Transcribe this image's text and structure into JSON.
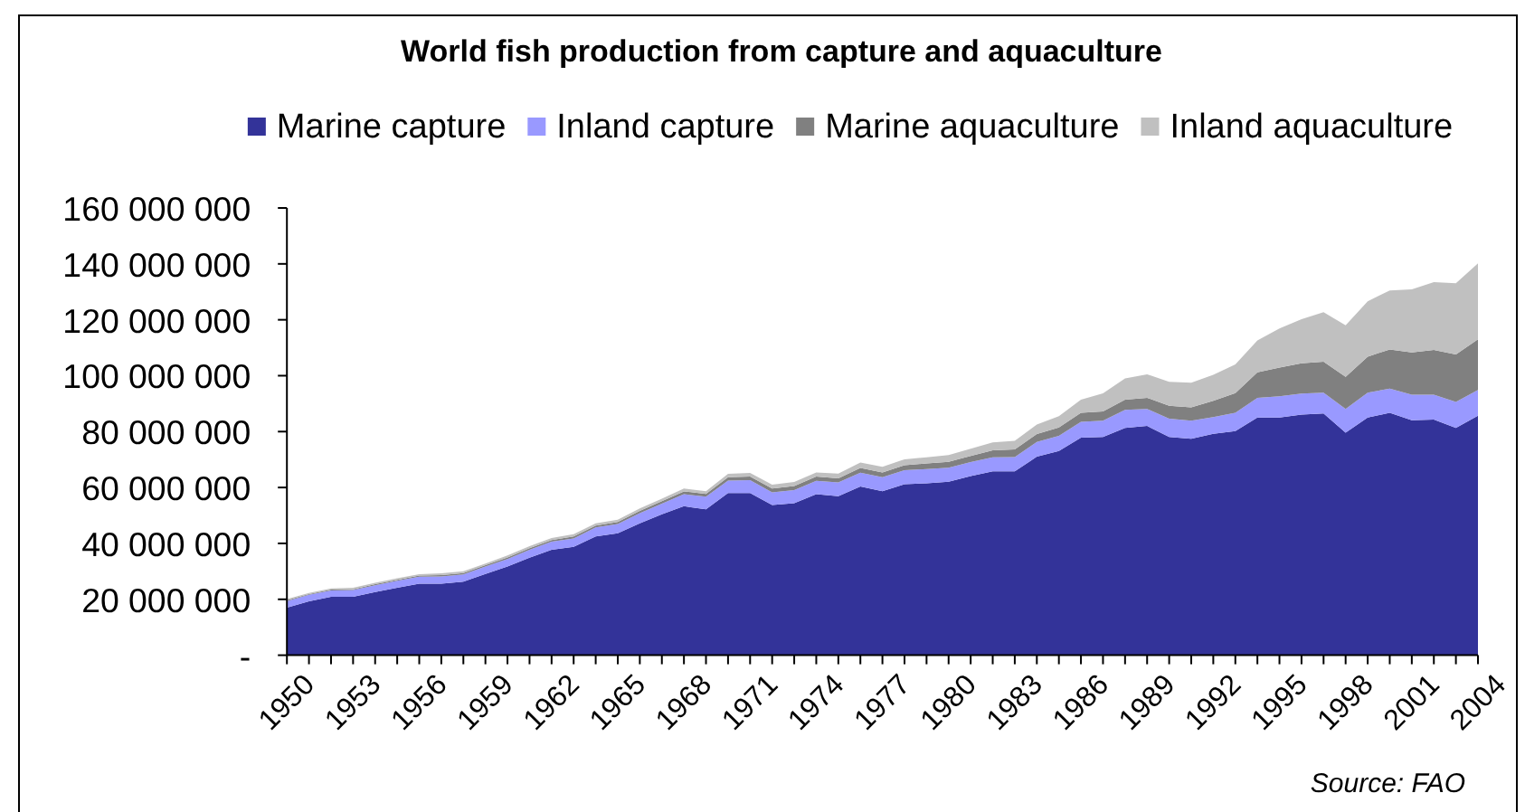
{
  "chart_data": {
    "type": "area",
    "stacked": true,
    "title": "World fish production from capture and aquaculture",
    "legend": "top",
    "categories": [
      "1950",
      null,
      null,
      "1953",
      null,
      null,
      "1956",
      null,
      null,
      "1959",
      null,
      null,
      "1962",
      null,
      null,
      "1965",
      null,
      null,
      "1968",
      null,
      null,
      "1971",
      null,
      null,
      "1974",
      null,
      null,
      "1977",
      null,
      null,
      "1980",
      null,
      null,
      "1983",
      null,
      null,
      "1986",
      null,
      null,
      "1989",
      null,
      null,
      "1992",
      null,
      null,
      "1995",
      null,
      null,
      "1998",
      null,
      null,
      "2001",
      null,
      null,
      "2004"
    ],
    "series": [
      {
        "name": "Marine capture",
        "color": "#333399",
        "values": [
          17000000,
          19300000,
          20900000,
          20900000,
          22600000,
          24100000,
          25600000,
          25600000,
          26300000,
          29100000,
          31700000,
          34900000,
          37700000,
          38800000,
          42500000,
          43600000,
          47200000,
          50400000,
          53300000,
          52200000,
          58000000,
          58000000,
          53700000,
          54400000,
          57600000,
          56900000,
          60400000,
          58700000,
          61200000,
          61500000,
          62100000,
          64100000,
          65800000,
          65800000,
          71000000,
          73100000,
          77800000,
          78100000,
          81300000,
          82000000,
          78100000,
          77400000,
          79200000,
          80200000,
          85000000,
          85000000,
          86100000,
          86500000,
          79600000,
          85000000,
          86700000,
          84100000,
          84300000,
          81300000,
          85700000
        ]
      },
      {
        "name": "Inland capture",
        "color": "#9999ff",
        "values": [
          2400000,
          2300000,
          2300000,
          2400000,
          2400000,
          2500000,
          2500000,
          2600000,
          2600000,
          2600000,
          2700000,
          2800000,
          2900000,
          3000000,
          3200000,
          3300000,
          3600000,
          3800000,
          4300000,
          4500000,
          4500000,
          4600000,
          4600000,
          4700000,
          4800000,
          4900000,
          4900000,
          5000000,
          5000000,
          5100000,
          5000000,
          5000000,
          5000000,
          5100000,
          5300000,
          5400000,
          5700000,
          5800000,
          6500000,
          6100000,
          6500000,
          6500000,
          6000000,
          6500000,
          7100000,
          7600000,
          7500000,
          7400000,
          8500000,
          8900000,
          8700000,
          9100000,
          8900000,
          9300000,
          9200000
        ]
      },
      {
        "name": "Marine aquaculture",
        "color": "#808080",
        "values": [
          300000,
          300000,
          300000,
          300000,
          400000,
          400000,
          400000,
          500000,
          500000,
          500000,
          600000,
          600000,
          600000,
          700000,
          700000,
          800000,
          800000,
          900000,
          1000000,
          1000000,
          1200000,
          1300000,
          1300000,
          1400000,
          1500000,
          1500000,
          1700000,
          1700000,
          1800000,
          2000000,
          2100000,
          2200000,
          2500000,
          2700000,
          2800000,
          3000000,
          3200000,
          3300000,
          3600000,
          4000000,
          4600000,
          4800000,
          5800000,
          7100000,
          9100000,
          10300000,
          10800000,
          11100000,
          11500000,
          12900000,
          14000000,
          15100000,
          16000000,
          17000000,
          18100000
        ]
      },
      {
        "name": "Inland aquaculture",
        "color": "#c0c0c0",
        "values": [
          400000,
          400000,
          400000,
          500000,
          500000,
          500000,
          500000,
          600000,
          600000,
          600000,
          700000,
          700000,
          700000,
          800000,
          800000,
          800000,
          900000,
          900000,
          1000000,
          1000000,
          1200000,
          1300000,
          1400000,
          1500000,
          1500000,
          1700000,
          1900000,
          2000000,
          2100000,
          2200000,
          2400000,
          2600000,
          2800000,
          3100000,
          3400000,
          4000000,
          4700000,
          6500000,
          7600000,
          8400000,
          8600000,
          8800000,
          9300000,
          10200000,
          11400000,
          14000000,
          15800000,
          17700000,
          18400000,
          19800000,
          21100000,
          22600000,
          24300000,
          25500000,
          27200000
        ]
      }
    ],
    "ylim": [
      0,
      160000000
    ],
    "yticks": [
      {
        "value": 0,
        "label": "-"
      },
      {
        "value": 20000000,
        "label": "20 000 000"
      },
      {
        "value": 40000000,
        "label": "40 000 000"
      },
      {
        "value": 60000000,
        "label": "60 000 000"
      },
      {
        "value": 80000000,
        "label": "80 000 000"
      },
      {
        "value": 100000000,
        "label": "100 000 000"
      },
      {
        "value": 120000000,
        "label": "120 000 000"
      },
      {
        "value": 140000000,
        "label": "140 000 000"
      },
      {
        "value": 160000000,
        "label": "160 000 000"
      }
    ],
    "annotations": [
      "Source: FAO"
    ]
  }
}
